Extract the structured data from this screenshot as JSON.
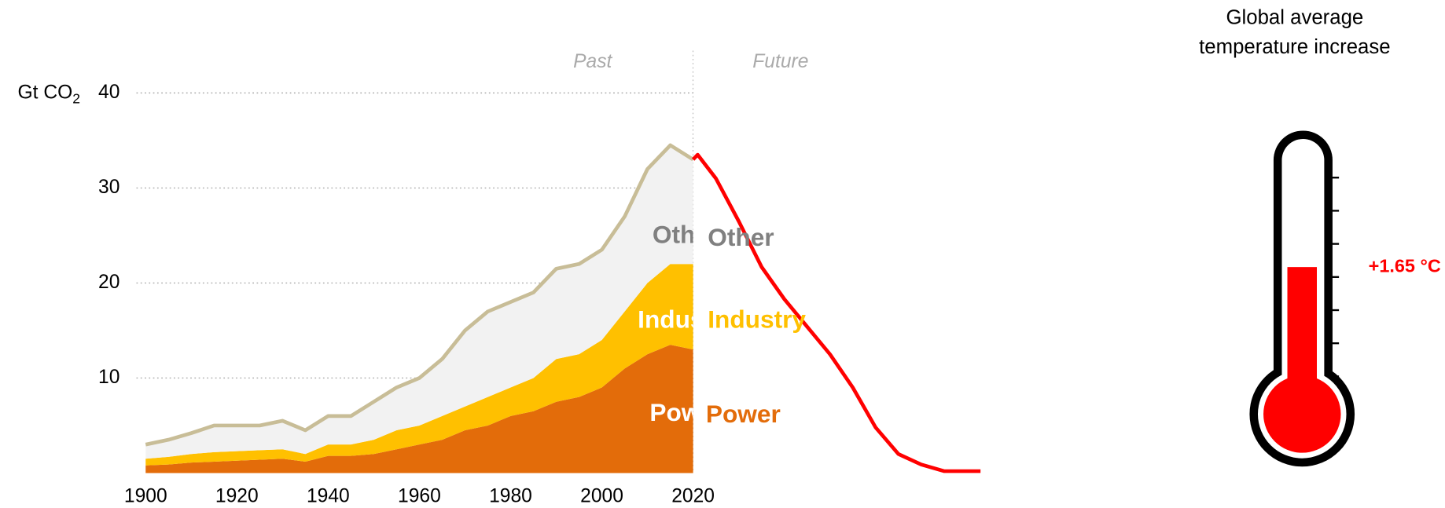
{
  "chart_data": {
    "type": "stacked_area",
    "y_label": "Gt CO",
    "y_label_sub": "2",
    "annotations": [
      "Past",
      "Future"
    ],
    "x": [
      1900,
      1905,
      1910,
      1915,
      1920,
      1925,
      1930,
      1935,
      1940,
      1945,
      1950,
      1955,
      1960,
      1965,
      1970,
      1975,
      1980,
      1985,
      1990,
      1995,
      2000,
      2005,
      2010,
      2015,
      2020
    ],
    "series": [
      {
        "name": "Power",
        "color": "#e36c0a",
        "values": [
          0.8,
          0.9,
          1.1,
          1.2,
          1.3,
          1.4,
          1.5,
          1.2,
          1.8,
          1.8,
          2,
          2.5,
          3,
          3.5,
          4.5,
          5,
          6,
          6.5,
          7.5,
          8,
          9,
          11,
          12.5,
          13.5,
          13
        ]
      },
      {
        "name": "Industry",
        "color": "#ffc000",
        "values": [
          0.7,
          0.8,
          0.9,
          1,
          1,
          1,
          1,
          0.8,
          1.2,
          1.2,
          1.5,
          2,
          2,
          2.5,
          2.5,
          3,
          3,
          3.5,
          4.5,
          4.5,
          5,
          6,
          7.5,
          8.5,
          9
        ]
      },
      {
        "name": "Other",
        "color": "#f2f2f2",
        "line_color": "#c8bd97",
        "values": [
          1.5,
          1.8,
          2.2,
          2.8,
          2.7,
          2.6,
          3,
          2.5,
          3,
          3,
          4,
          4.5,
          5,
          6,
          8,
          9,
          9,
          9,
          9.5,
          9.5,
          9.5,
          10,
          12,
          12.5,
          11
        ]
      }
    ],
    "future": {
      "color": "#ff0000",
      "x": [
        2020,
        2021,
        2025,
        2030,
        2035,
        2040,
        2045,
        2050,
        2055,
        2060,
        2065,
        2070,
        2075,
        2083
      ],
      "values": [
        33,
        33.5,
        31,
        26.5,
        21.7,
        18.3,
        15.4,
        12.5,
        9,
        4.8,
        2,
        0.9,
        0.2,
        0.2
      ]
    },
    "future_labels": [
      "Other",
      "Industry",
      "Power"
    ],
    "xlim": [
      1900,
      2083
    ],
    "xticks": [
      1900,
      1920,
      1940,
      1960,
      1980,
      2000,
      2020
    ],
    "ylim": [
      0,
      40
    ],
    "yticks": [
      10,
      20,
      30,
      40
    ],
    "grid": true
  },
  "thermometer": {
    "title": [
      "Global average",
      "temperature increase"
    ],
    "value": 1.65,
    "value_label": "+1.65 °C",
    "color": "#ff0000",
    "lim": [
      0,
      3
    ],
    "ticks": [
      0,
      0.5,
      1,
      1.5,
      2,
      2.5,
      3
    ]
  }
}
